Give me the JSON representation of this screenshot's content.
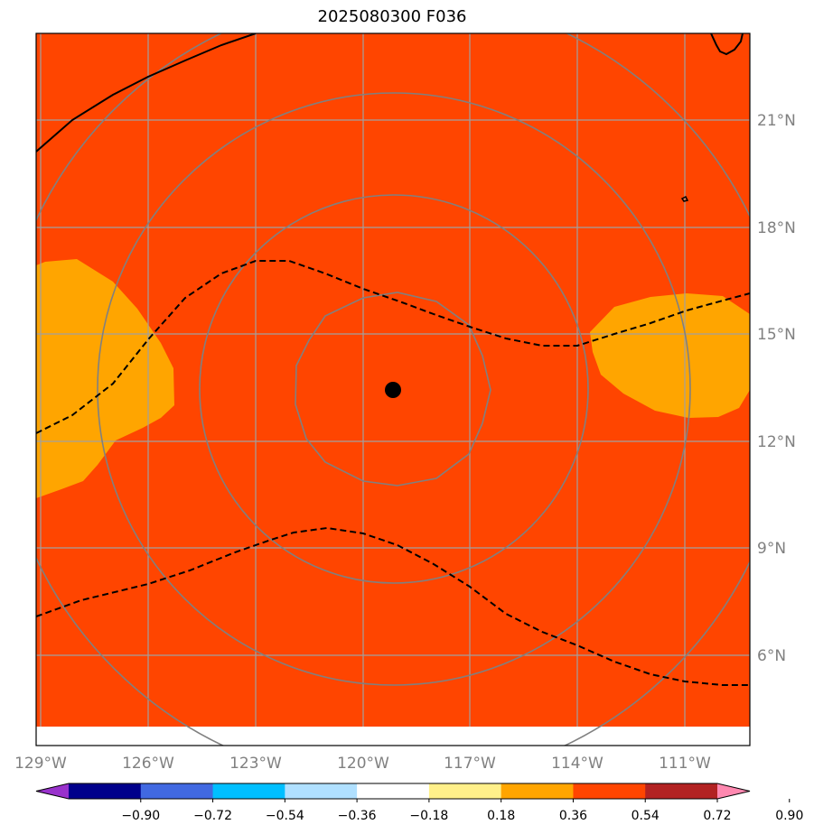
{
  "title": "2025080300 F036",
  "colors": {
    "background_field": "#ff4500",
    "orange_field": "#ffa500",
    "range_rings": "#808080",
    "gridlines": "#a0a0a0",
    "coastline": "#000000",
    "dashed_contour": "#000000",
    "center_marker": "#000000"
  },
  "map": {
    "lon_ticks": [
      "129°W",
      "126°W",
      "123°W",
      "120°W",
      "117°W",
      "114°W",
      "111°W"
    ],
    "lat_ticks": [
      "21°N",
      "18°N",
      "15°N",
      "12°N",
      "9°N",
      "6°N"
    ],
    "center_marker": "center-dot"
  },
  "colorbar": {
    "labels": [
      "−0.90",
      "−0.72",
      "−0.54",
      "−0.36",
      "−0.18",
      "0.18",
      "0.36",
      "0.54",
      "0.72",
      "0.90"
    ],
    "colors": [
      "#9932cc",
      "#00008b",
      "#4169e1",
      "#00bfff",
      "#b0e0ff",
      "#ffffff",
      "#fff08a",
      "#ffa500",
      "#ff4500",
      "#b22222",
      "#ff88b0"
    ],
    "extend": "both"
  }
}
